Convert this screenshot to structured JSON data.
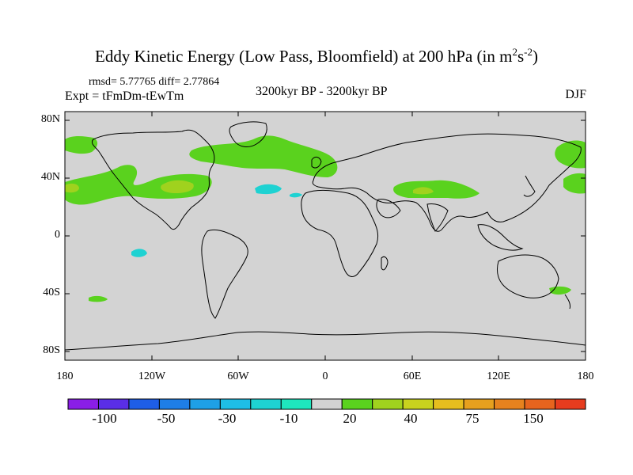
{
  "title": {
    "main": "Eddy Kinetic Energy (Low Pass, Bloomfield) at 200 hPa (in m",
    "sup1": "2",
    "mid": "s",
    "sup2": "-2",
    "end": ")"
  },
  "stats": "rmsd= 5.77765  diff= 2.77864",
  "expt": "Expt = tFmDm-tEwTm",
  "period": "3200kyr BP - 3200kyr BP",
  "season": "DJF",
  "lat_labels": [
    "80N",
    "40N",
    "0",
    "40S",
    "80S"
  ],
  "lon_labels": [
    "180",
    "120W",
    "60W",
    "0",
    "60E",
    "120E",
    "180"
  ],
  "colorbar": {
    "colors": [
      "#8a1ee6",
      "#5a2ee6",
      "#1e5ee6",
      "#1e7ee6",
      "#1ea0e6",
      "#1ebee6",
      "#1ed2d2",
      "#1ee6be",
      "#d3d3d3",
      "#5ad21e",
      "#a0d21e",
      "#c8d21e",
      "#e6be1e",
      "#e6a01e",
      "#e6821e",
      "#e6641e",
      "#e63c1e"
    ],
    "labels": [
      "-100",
      "-50",
      "-30",
      "-10",
      "20",
      "40",
      "75",
      "150"
    ]
  },
  "map_colors": {
    "background": "#d3d3d3",
    "green": "#5ad21e",
    "yellow": "#a0d21e",
    "cyan": "#1ee6be"
  }
}
